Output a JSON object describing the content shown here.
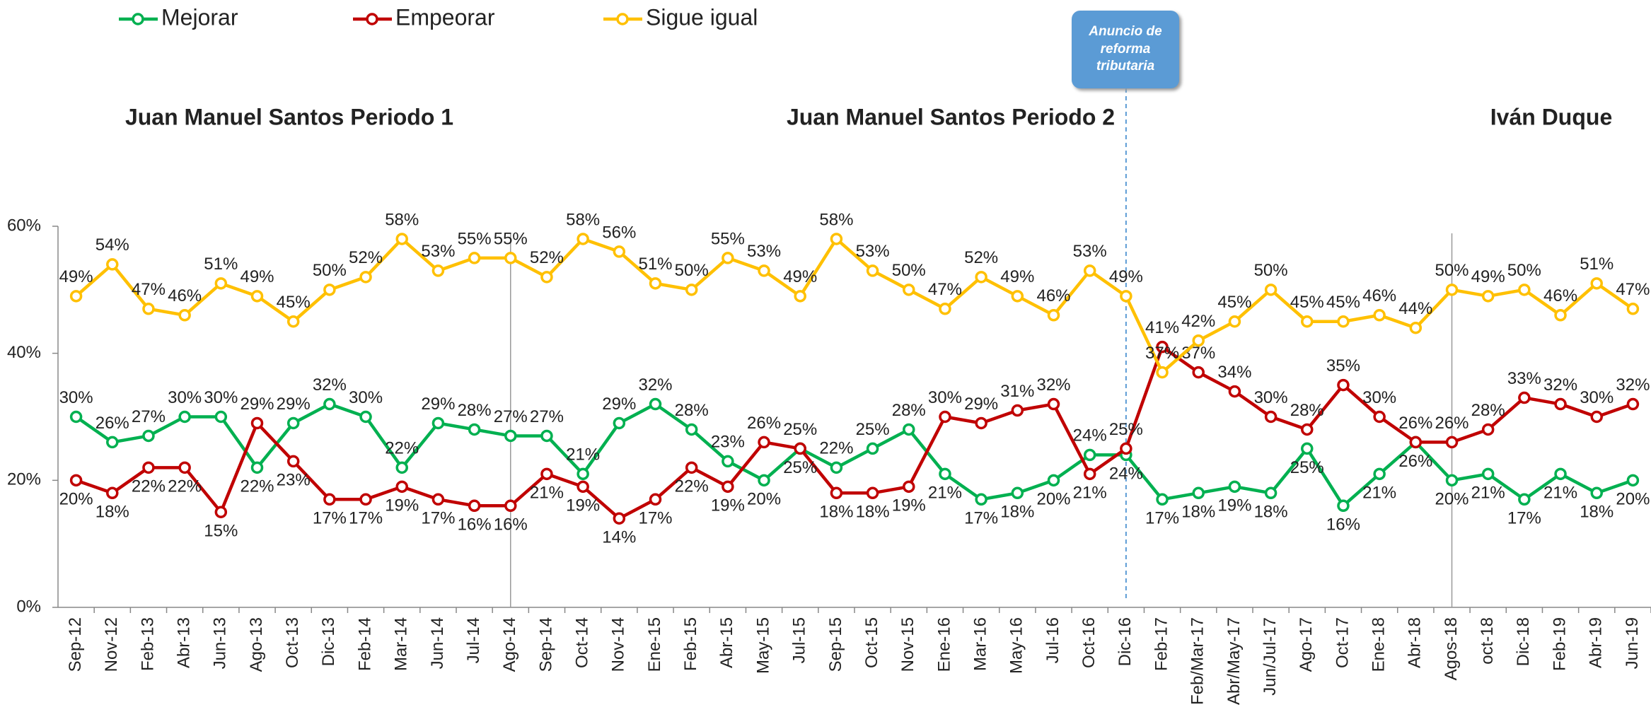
{
  "chart_data": {
    "type": "line",
    "categories": [
      "Sep-12",
      "Nov-12",
      "Feb-13",
      "Abr-13",
      "Jun-13",
      "Ago-13",
      "Oct-13",
      "Dic-13",
      "Feb-14",
      "Mar-14",
      "Jun-14",
      "Jul-14",
      "Ago-14",
      "Sep-14",
      "Oct-14",
      "Nov-14",
      "Ene-15",
      "Feb-15",
      "Abr-15",
      "May-15",
      "Jul-15",
      "Sep-15",
      "Oct-15",
      "Nov-15",
      "Ene-16",
      "Mar-16",
      "May-16",
      "Jul-16",
      "Oct-16",
      "Dic-16",
      "Feb-17",
      "Feb/Mar-17",
      "Abr/May-17",
      "Jun/Jul-17",
      "Ago-17",
      "Oct-17",
      "Ene-18",
      "Abr-18",
      "Agos-18",
      "oct-18",
      "Dic-18",
      "Feb-19",
      "Abr-19",
      "Jun-19"
    ],
    "series": [
      {
        "name": "Mejorar",
        "color": "#00b050",
        "values": [
          30,
          26,
          27,
          30,
          30,
          22,
          29,
          32,
          30,
          22,
          29,
          28,
          27,
          27,
          21,
          29,
          32,
          28,
          23,
          20,
          25,
          22,
          25,
          28,
          21,
          17,
          18,
          20,
          24,
          24,
          17,
          18,
          19,
          18,
          25,
          16,
          21,
          26,
          20,
          21,
          17,
          21,
          18,
          20
        ],
        "value_labels": [
          "30%",
          "26%",
          "27%",
          "30%",
          "30%",
          "22%",
          "29%",
          "32%",
          "30%",
          "22%",
          "29%",
          "28%",
          "27%",
          "27%",
          "21%",
          "29%",
          "32%",
          "28%",
          "23%",
          "20%",
          "25%",
          "22%",
          "25%",
          "28%",
          "21%",
          "17%",
          "18%",
          "20%",
          "24%",
          "24%",
          "17%",
          "18%",
          "19%",
          "18%",
          "25%",
          "16%",
          "21%",
          "26%",
          "20%",
          "21%",
          "17%",
          "21%",
          "18%",
          "20%"
        ]
      },
      {
        "name": "Empeorar",
        "color": "#c00000",
        "values": [
          20,
          18,
          22,
          22,
          15,
          29,
          23,
          17,
          17,
          19,
          17,
          16,
          16,
          21,
          19,
          14,
          17,
          22,
          19,
          26,
          25,
          18,
          18,
          19,
          30,
          29,
          31,
          32,
          21,
          25,
          41,
          37,
          34,
          30,
          28,
          35,
          30,
          26,
          26,
          28,
          33,
          32,
          30,
          32
        ],
        "value_labels": [
          "20%",
          "18%",
          "22%",
          "22%",
          "15%",
          "29%",
          "23%",
          "17%",
          "17%",
          "19%",
          "17%",
          "16%",
          "16%",
          "21%",
          "19%",
          "14%",
          "17%",
          "22%",
          "19%",
          "26%",
          "25%",
          "18%",
          "18%",
          "19%",
          "30%",
          "29%",
          "31%",
          "32%",
          "21%",
          "25%",
          "41%",
          "37%",
          "34%",
          "30%",
          "28%",
          "35%",
          "30%",
          "26%",
          "26%",
          "28%",
          "33%",
          "32%",
          "30%",
          "32%"
        ]
      },
      {
        "name": "Sigue igual",
        "color": "#ffc000",
        "values": [
          49,
          54,
          47,
          46,
          51,
          49,
          45,
          50,
          52,
          58,
          53,
          55,
          55,
          52,
          58,
          56,
          51,
          50,
          55,
          53,
          49,
          58,
          53,
          50,
          47,
          52,
          49,
          46,
          53,
          49,
          37,
          42,
          45,
          50,
          45,
          45,
          46,
          44,
          50,
          49,
          50,
          46,
          51,
          47
        ],
        "value_labels": [
          "49%",
          "54%",
          "47%",
          "46%",
          "51%",
          "49%",
          "45%",
          "50%",
          "52%",
          "58%",
          "53%",
          "55%",
          "55%",
          "52%",
          "58%",
          "56%",
          "51%",
          "50%",
          "55%",
          "53%",
          "49%",
          "58%",
          "53%",
          "50%",
          "47%",
          "52%",
          "49%",
          "46%",
          "53%",
          "49%",
          "37%",
          "42%",
          "45%",
          "50%",
          "45%",
          "45%",
          "46%",
          "44%",
          "50%",
          "49%",
          "50%",
          "46%",
          "51%",
          "47%"
        ]
      }
    ],
    "ylim": [
      0,
      60
    ],
    "yticks": [
      {
        "value": 0,
        "label": "0%"
      },
      {
        "value": 20,
        "label": "20%"
      },
      {
        "value": 40,
        "label": "40%"
      },
      {
        "value": 60,
        "label": "60%"
      }
    ],
    "periods": [
      "Juan Manuel Santos Periodo 1",
      "Juan Manuel Santos Periodo 2",
      "Iván Duque"
    ],
    "annotation": "Anuncio de reforma tributaria"
  }
}
